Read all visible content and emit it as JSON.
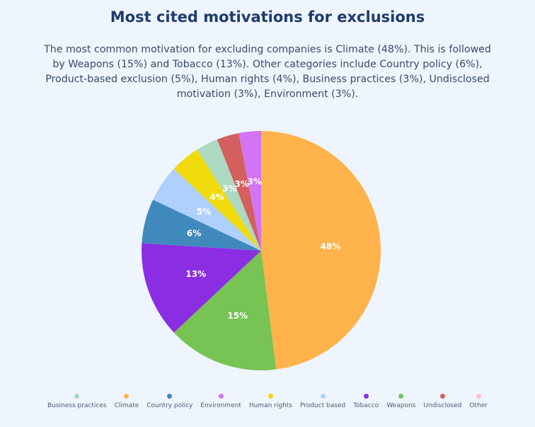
{
  "title": "Most cited motivations for exclusions",
  "subtitle": "The most common motivation for excluding companies is Climate (48%). This is followed by Weapons (15%) and Tobacco (13%). Other categories include Country policy (6%), Product-based exclusion (5%), Human rights (4%), Business practices (3%), Undisclosed motivation (3%), Environment (3%).",
  "chart_data": {
    "type": "pie",
    "slices": [
      {
        "name": "Climate",
        "value": 48,
        "label": "48%",
        "color": "#ffb34a"
      },
      {
        "name": "Weapons",
        "value": 15,
        "label": "15%",
        "color": "#77c353"
      },
      {
        "name": "Tobacco",
        "value": 13,
        "label": "13%",
        "color": "#8b2ee3"
      },
      {
        "name": "Country policy",
        "value": 6,
        "label": "6%",
        "color": "#3f89bd"
      },
      {
        "name": "Product based",
        "value": 5,
        "label": "5%",
        "color": "#afd0fd"
      },
      {
        "name": "Human rights",
        "value": 4,
        "label": "4%",
        "color": "#f0da0c"
      },
      {
        "name": "Business practices",
        "value": 3,
        "label": "3%",
        "color": "#acd9c0"
      },
      {
        "name": "Undisclosed",
        "value": 3,
        "label": "3%",
        "color": "#d35f5f"
      },
      {
        "name": "Environment",
        "value": 3,
        "label": "3%",
        "color": "#d274f3"
      }
    ],
    "legend": [
      {
        "name": "Business practices",
        "color": "#acd9c0"
      },
      {
        "name": "Climate",
        "color": "#ffb34a"
      },
      {
        "name": "Country policy",
        "color": "#3f89bd"
      },
      {
        "name": "Environment",
        "color": "#d274f3"
      },
      {
        "name": "Human rights",
        "color": "#f0da0c"
      },
      {
        "name": "Product based",
        "color": "#afd0fd"
      },
      {
        "name": "Tobacco",
        "color": "#8b2ee3"
      },
      {
        "name": "Weapons",
        "color": "#77c353"
      },
      {
        "name": "Undisclosed",
        "color": "#d35f5f"
      },
      {
        "name": "Other",
        "color": "#ffc0cb"
      }
    ],
    "legend_position": "bottom"
  }
}
